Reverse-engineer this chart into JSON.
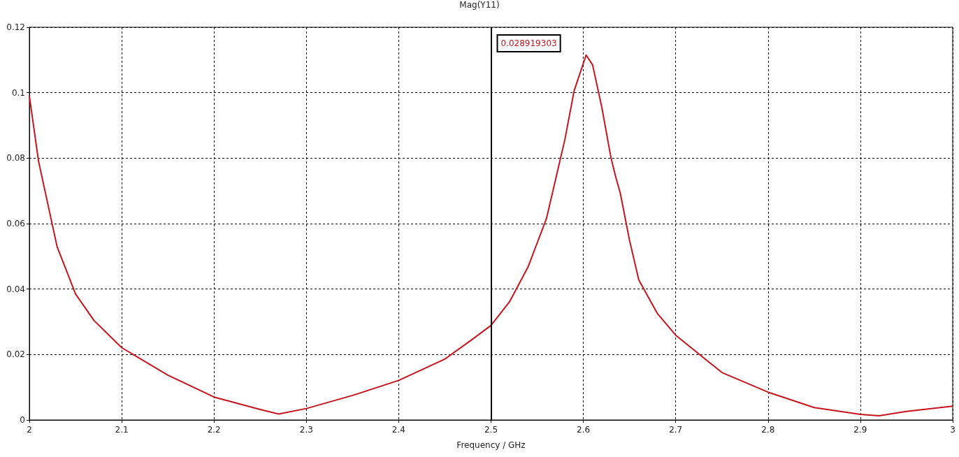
{
  "chart_data": {
    "type": "line",
    "title": "Mag(Y11)",
    "xlabel": "Frequency / GHz",
    "x": [
      2.0,
      2.01,
      2.02,
      2.03,
      2.05,
      2.07,
      2.1,
      2.15,
      2.2,
      2.25,
      2.27,
      2.3,
      2.35,
      2.4,
      2.45,
      2.48,
      2.5,
      2.52,
      2.54,
      2.56,
      2.58,
      2.59,
      2.6,
      2.603,
      2.61,
      2.62,
      2.63,
      2.635,
      2.64,
      2.65,
      2.66,
      2.68,
      2.7,
      2.75,
      2.8,
      2.85,
      2.9,
      2.92,
      2.95,
      3.0
    ],
    "series": [
      {
        "color": "#c8141e",
        "values": [
          0.099,
          0.079,
          0.066,
          0.053,
          0.0385,
          0.0304,
          0.0221,
          0.0137,
          0.007,
          0.0032,
          0.0018,
          0.0035,
          0.0075,
          0.0121,
          0.0186,
          0.0247,
          0.0289,
          0.0361,
          0.0467,
          0.0615,
          0.0857,
          0.1006,
          0.109,
          0.1115,
          0.1085,
          0.0955,
          0.08,
          0.0743,
          0.0693,
          0.0549,
          0.0428,
          0.0326,
          0.0259,
          0.0145,
          0.0085,
          0.0038,
          0.0017,
          0.0013,
          0.0026,
          0.0042
        ]
      }
    ],
    "xlim": [
      2,
      3
    ],
    "xticks": [
      2,
      2.1,
      2.2,
      2.3,
      2.4,
      2.5,
      2.6,
      2.7,
      2.8,
      2.9,
      3
    ],
    "ylim": [
      0,
      0.12
    ],
    "yticks": [
      0,
      0.02,
      0.04,
      0.06,
      0.08,
      0.1,
      0.12
    ],
    "grid": true,
    "marker": "none",
    "line_style": "solid",
    "ref_lines": [
      {
        "axis": "x",
        "value": 2.5,
        "color": "#000000"
      }
    ],
    "annotations": [
      "0.028919303"
    ]
  }
}
